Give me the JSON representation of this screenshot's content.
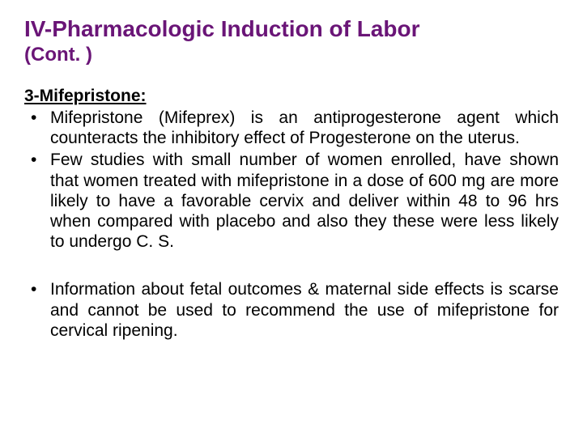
{
  "colors": {
    "heading": "#6a1577",
    "body_text": "#000000",
    "background": "#ffffff"
  },
  "typography": {
    "title_fontsize_pt": 21,
    "subtitle_fontsize_pt": 18,
    "body_fontsize_pt": 16,
    "font_family": "Arial"
  },
  "title": {
    "main": "IV-Pharmacologic Induction of Labor",
    "cont": "(Cont. )"
  },
  "section": {
    "heading_prefix": "3-",
    "heading_text": "Mifepristone:",
    "heading_full": "3-Mifepristone:"
  },
  "bullets_a": [
    "Mifepristone (Mifeprex) is an antiprogesterone agent which counteracts the inhibitory effect of Progesterone on the uterus.",
    "Few studies with small number of women enrolled, have shown that women treated with mifepristone in a dose of 600 mg are more likely to have a favorable cervix and deliver within 48 to 96 hrs when compared with placebo and also they these were less likely to undergo C. S."
  ],
  "bullets_b": [
    "Information about fetal outcomes & maternal side effects is scarse and cannot be used  to recommend the use of mifepristone for cervical ripening."
  ]
}
